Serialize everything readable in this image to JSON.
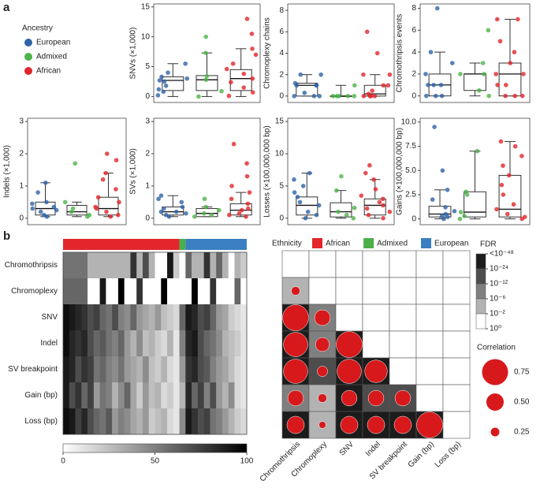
{
  "panel_labels": [
    "a",
    "b"
  ],
  "ancestry_legend": {
    "title": "Ancestry",
    "items": [
      {
        "name": "European",
        "color": "#2f63a8"
      },
      {
        "name": "Admixed",
        "color": "#4db34a"
      },
      {
        "name": "African",
        "color": "#e0262b"
      }
    ]
  },
  "ethnicity_legend": {
    "title": "Ethnicity",
    "items": [
      {
        "name": "African",
        "color": "#e3262b"
      },
      {
        "name": "Admixed",
        "color": "#4caf4a"
      },
      {
        "name": "European",
        "color": "#3a7fc1"
      }
    ]
  },
  "chart_data": [
    {
      "type": "box",
      "y_label": "SNVs (×1,000)",
      "ylim": [
        -1,
        15.5
      ],
      "yticks": [
        0,
        5,
        10,
        15
      ],
      "series": [
        {
          "box": [
            0,
            1,
            2.7,
            3.3,
            5.5
          ],
          "points": [
            0.2,
            0.8,
            1.2,
            1.8,
            2.5,
            2.7,
            3.0,
            3.3,
            4.0,
            5.5
          ]
        },
        {
          "box": [
            0,
            1,
            2.8,
            3.5,
            7.3
          ],
          "points": [
            0,
            0.9,
            2.8,
            3.4,
            7.3,
            10
          ]
        },
        {
          "box": [
            0,
            1,
            3,
            4.5,
            8
          ],
          "points": [
            0.1,
            0.7,
            1.5,
            2.4,
            3.0,
            3.8,
            4.6,
            5.5,
            7,
            8,
            10.5,
            13
          ]
        }
      ]
    },
    {
      "type": "box",
      "y_label": "Chromoplexy chains",
      "ylim": [
        -0.6,
        8.6
      ],
      "yticks": [
        0,
        2,
        4,
        6,
        8
      ],
      "series": [
        {
          "box": [
            0,
            0,
            1,
            1.2,
            2
          ],
          "points": [
            0,
            0,
            0,
            0.3,
            1,
            1,
            1,
            1.2,
            2,
            2
          ]
        },
        {
          "box": [
            0,
            0,
            0,
            0,
            1
          ],
          "points": [
            0,
            0,
            0,
            0,
            0,
            1
          ]
        },
        {
          "box": [
            0,
            0,
            0.2,
            1,
            2
          ],
          "points": [
            0,
            0,
            0,
            0,
            0.2,
            0.5,
            1,
            1,
            2,
            2,
            4,
            6
          ]
        }
      ]
    },
    {
      "type": "box",
      "y_label": "Chromothripsis events",
      "ylim": [
        -0.6,
        8.4
      ],
      "yticks": [
        0,
        2,
        4,
        6,
        8
      ],
      "series": [
        {
          "box": [
            0,
            0,
            1,
            2,
            4
          ],
          "points": [
            0,
            0,
            0,
            1,
            1,
            1,
            2,
            3,
            4,
            8
          ]
        },
        {
          "box": [
            0,
            0.5,
            2,
            2,
            3
          ],
          "points": [
            0,
            0.5,
            2,
            2,
            3,
            6
          ]
        },
        {
          "box": [
            0,
            0,
            2,
            3,
            7
          ],
          "points": [
            0,
            0,
            0,
            1,
            1,
            2,
            2,
            3,
            4,
            5,
            7,
            7
          ]
        }
      ]
    },
    {
      "type": "box",
      "y_label": "Indels (×1,000)",
      "ylim": [
        -0.2,
        3.1
      ],
      "yticks": [
        0,
        1,
        2,
        3
      ],
      "series": [
        {
          "box": [
            0.05,
            0.1,
            0.3,
            0.5,
            1.1
          ],
          "points": [
            0.05,
            0.1,
            0.2,
            0.25,
            0.3,
            0.35,
            0.45,
            0.5,
            0.8,
            1.1
          ]
        },
        {
          "box": [
            0.05,
            0.1,
            0.2,
            0.4,
            0.5
          ],
          "points": [
            0.05,
            0.1,
            0.2,
            0.3,
            0.5,
            1.7
          ]
        },
        {
          "box": [
            0.05,
            0.1,
            0.3,
            0.65,
            1.4
          ],
          "points": [
            0.05,
            0.1,
            0.2,
            0.3,
            0.35,
            0.5,
            0.65,
            0.9,
            1.2,
            1.4,
            1.8,
            2.0
          ]
        }
      ]
    },
    {
      "type": "box",
      "y_label": "SVs (×1,000)",
      "ylim": [
        -0.2,
        3.1
      ],
      "yticks": [
        0,
        1,
        2,
        3
      ],
      "series": [
        {
          "box": [
            0.05,
            0.1,
            0.2,
            0.35,
            0.7
          ],
          "points": [
            0.05,
            0.1,
            0.15,
            0.2,
            0.2,
            0.3,
            0.35,
            0.5,
            0.6,
            0.7
          ]
        },
        {
          "box": [
            0.05,
            0.05,
            0.15,
            0.3,
            0.35
          ],
          "points": [
            0.05,
            0.1,
            0.15,
            0.25,
            0.35,
            0.6
          ]
        },
        {
          "box": [
            0.05,
            0.1,
            0.25,
            0.45,
            0.8
          ],
          "points": [
            0.05,
            0.1,
            0.15,
            0.25,
            0.3,
            0.45,
            0.6,
            0.8,
            1,
            1.3,
            1.7,
            2.3
          ]
        }
      ]
    },
    {
      "type": "box",
      "y_label": "Losses (×100,000,000 bp)",
      "ylim": [
        -1,
        15.5
      ],
      "yticks": [
        0,
        5,
        10,
        15
      ],
      "series": [
        {
          "box": [
            0,
            0.5,
            2,
            3.3,
            7
          ],
          "points": [
            0,
            0.5,
            1,
            2,
            2.5,
            3.3,
            4,
            5,
            6,
            7
          ]
        },
        {
          "box": [
            0,
            0.2,
            1,
            2.4,
            4.3
          ],
          "points": [
            0,
            0.5,
            1,
            1.6,
            4.3,
            6.5
          ]
        },
        {
          "box": [
            0,
            0.5,
            2,
            3,
            6
          ],
          "points": [
            0,
            0.5,
            1,
            1.5,
            2,
            2.5,
            3,
            3.5,
            4.5,
            6,
            7,
            8.2
          ]
        }
      ]
    },
    {
      "type": "box",
      "y_label": "Gains (×100,000,000 bp)",
      "ylim": [
        -0.6,
        10.4
      ],
      "yticks": [
        0,
        2.5,
        {
          "value": 5,
          "label": "5.0"
        },
        7.5,
        {
          "value": 10,
          "label": "10.0"
        }
      ],
      "series": [
        {
          "box": [
            0,
            0.2,
            0.5,
            1.3,
            3
          ],
          "points": [
            0,
            0.2,
            0.3,
            0.5,
            0.8,
            1.2,
            2,
            3,
            5,
            9.5
          ]
        },
        {
          "box": [
            0,
            0.2,
            0.7,
            2.8,
            7
          ],
          "points": [
            0,
            0.3,
            0.7,
            2.5,
            2.8,
            7
          ]
        },
        {
          "box": [
            0,
            0.2,
            1,
            4.5,
            8
          ],
          "points": [
            0,
            0.2,
            0.5,
            1,
            1.5,
            2.5,
            3.5,
            4.5,
            5.5,
            6.5,
            7.5,
            8
          ]
        }
      ]
    },
    {
      "type": "heatmap",
      "rows": [
        "Chromothripsis",
        "Chromoplexy",
        "SNV",
        "Indel",
        "SV breakpoint",
        "Gain (bp)",
        "Loss (bp)"
      ],
      "column_groups": [
        19,
        1,
        10
      ],
      "values": [
        [
          55,
          55,
          55,
          55,
          30,
          30,
          30,
          30,
          30,
          30,
          30,
          80,
          30,
          70,
          30,
          0,
          0,
          90,
          20,
          0,
          60,
          30,
          30,
          80,
          30,
          60,
          30,
          0,
          30,
          20
        ],
        [
          60,
          60,
          60,
          60,
          0,
          0,
          90,
          0,
          0,
          100,
          0,
          0,
          80,
          0,
          0,
          0,
          100,
          0,
          0,
          0,
          0,
          100,
          0,
          0,
          80,
          0,
          0,
          0,
          60,
          0
        ],
        [
          95,
          90,
          85,
          80,
          70,
          75,
          60,
          55,
          70,
          50,
          45,
          60,
          40,
          35,
          30,
          40,
          25,
          20,
          15,
          60,
          90,
          85,
          70,
          75,
          60,
          40,
          35,
          20,
          15,
          10
        ],
        [
          95,
          85,
          80,
          85,
          70,
          60,
          65,
          55,
          50,
          60,
          40,
          30,
          45,
          25,
          30,
          20,
          15,
          30,
          10,
          50,
          85,
          90,
          70,
          60,
          55,
          45,
          30,
          25,
          20,
          10
        ],
        [
          90,
          85,
          70,
          80,
          75,
          55,
          60,
          50,
          45,
          55,
          40,
          35,
          30,
          45,
          25,
          20,
          30,
          15,
          10,
          40,
          80,
          85,
          70,
          65,
          50,
          40,
          35,
          25,
          15,
          10
        ],
        [
          90,
          70,
          80,
          60,
          75,
          40,
          55,
          50,
          30,
          45,
          60,
          35,
          20,
          40,
          25,
          30,
          15,
          20,
          10,
          30,
          85,
          60,
          75,
          50,
          70,
          40,
          30,
          45,
          15,
          10
        ],
        [
          95,
          90,
          75,
          85,
          70,
          60,
          55,
          65,
          40,
          50,
          45,
          35,
          30,
          40,
          20,
          25,
          30,
          15,
          10,
          45,
          90,
          80,
          70,
          75,
          55,
          50,
          40,
          30,
          20,
          15
        ]
      ],
      "colorbar": {
        "lim": [
          0,
          100
        ],
        "ticks": [
          0,
          50,
          100
        ]
      }
    },
    {
      "type": "correlation",
      "labels": [
        "Chromothripsis",
        "Chromoplexy",
        "SNV",
        "Indel",
        "SV breakpoint",
        "Gain (bp)",
        "Loss (bp)"
      ],
      "color": "#d7191c",
      "correlation": [
        [
          null,
          null,
          null,
          null,
          null,
          null,
          null
        ],
        [
          0.25,
          null,
          null,
          null,
          null,
          null,
          null
        ],
        [
          0.75,
          0.45,
          null,
          null,
          null,
          null,
          null
        ],
        [
          0.7,
          0.4,
          0.75,
          null,
          null,
          null,
          null
        ],
        [
          0.7,
          0.3,
          0.7,
          0.65,
          null,
          null,
          null
        ],
        [
          0.45,
          0.25,
          0.45,
          0.45,
          0.45,
          null,
          null
        ],
        [
          0.5,
          0.2,
          0.5,
          0.5,
          0.5,
          0.75,
          null
        ]
      ],
      "log10_fdr": [
        [
          null,
          null,
          null,
          null,
          null,
          null,
          null
        ],
        [
          -3,
          null,
          null,
          null,
          null,
          null,
          null
        ],
        [
          -50,
          -8,
          null,
          null,
          null,
          null,
          null
        ],
        [
          -50,
          -8,
          -50,
          null,
          null,
          null,
          null
        ],
        [
          -50,
          -20,
          -50,
          -50,
          null,
          null,
          null
        ],
        [
          -10,
          -3,
          -30,
          -15,
          -20,
          null,
          null
        ],
        [
          -50,
          -3,
          -50,
          -50,
          -50,
          -50,
          null
        ]
      ],
      "fdr_legend": {
        "title": "FDR",
        "ticks": [
          {
            "value": -48,
            "label": "<10⁻⁴⁸"
          },
          {
            "value": -24,
            "label": "10⁻²⁴"
          },
          {
            "value": -12,
            "label": "10⁻¹²"
          },
          {
            "value": -6,
            "label": "10⁻⁶"
          },
          {
            "value": -2,
            "label": "10⁻²"
          },
          {
            "value": 0,
            "label": "10⁰"
          }
        ],
        "colors": [
          "#1c1c1c",
          "#4d4d4d",
          "#7f7f7f",
          "#b3b3b3",
          "#ffffff"
        ]
      },
      "correlation_legend": {
        "title": "Correlation",
        "values": [
          0.75,
          {
            "value": 0.5,
            "label": "0.50"
          },
          0.25
        ]
      }
    }
  ]
}
